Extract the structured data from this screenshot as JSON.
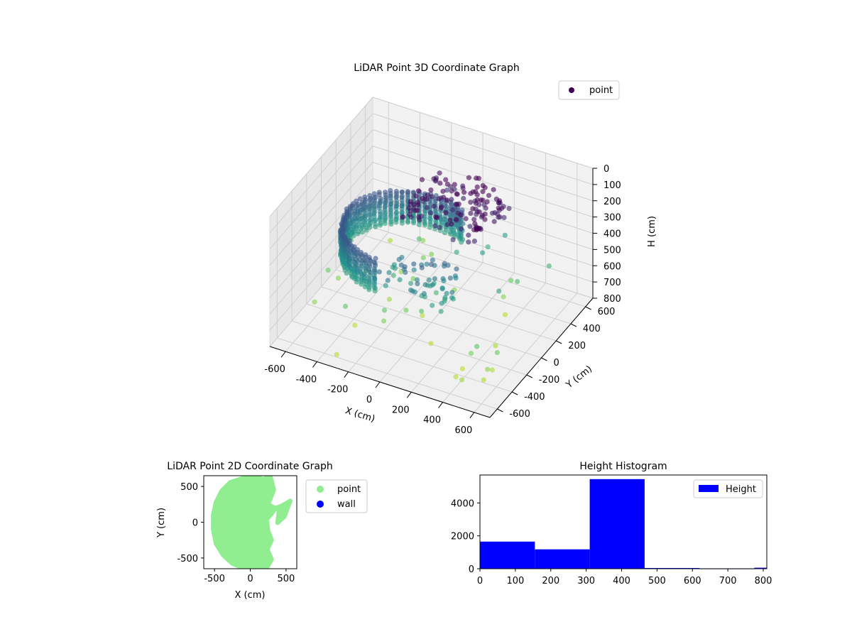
{
  "colors": {
    "point_3d_low": "#440154",
    "point_3d_high": "#b5de2b",
    "point_2d": "#90ee90",
    "wall": "#0000ff",
    "histogram_bar": "#0000ff",
    "pane": "#f2f2f2",
    "grid": "#d0d0d0"
  },
  "chart_data": [
    {
      "type": "scatter",
      "title": "LiDAR Point 3D Coordinate Graph",
      "xlabel": "X (cm)",
      "ylabel": "Y (cm)",
      "zlabel": "H (cm)",
      "xlim": [
        -700,
        700
      ],
      "ylim": [
        -700,
        700
      ],
      "zlim": [
        0,
        800
      ],
      "z_inverted": true,
      "x_ticks": [
        -600,
        -400,
        -200,
        0,
        200,
        400,
        600
      ],
      "y_ticks": [
        -600,
        -400,
        -200,
        0,
        200,
        400,
        600
      ],
      "z_ticks": [
        0,
        100,
        200,
        300,
        400,
        500,
        600,
        700,
        800
      ],
      "legend": {
        "position": "top-right",
        "entries": [
          "point"
        ]
      },
      "grid": true,
      "colormap": "viridis",
      "point_summary": {
        "wall_ring": {
          "shape": "partial cylinder",
          "center_x": -150,
          "center_y": 0,
          "radius": 380,
          "height_range": [
            270,
            470
          ]
        },
        "upper_cluster": {
          "x_range": [
            -150,
            350
          ],
          "y_range": [
            -100,
            400
          ],
          "height_range": [
            60,
            200
          ]
        },
        "sparse_outliers": {
          "height_range": [
            450,
            800
          ]
        }
      },
      "series": [
        {
          "name": "point"
        }
      ]
    },
    {
      "type": "scatter",
      "title": "LiDAR Point 2D Coordinate Graph",
      "xlabel": "X (cm)",
      "ylabel": "Y (cm)",
      "xlim": [
        -650,
        650
      ],
      "ylim": [
        -650,
        650
      ],
      "x_ticks": [
        -500,
        0,
        500
      ],
      "y_ticks": [
        -500,
        0,
        500
      ],
      "legend": {
        "position": "outside-right",
        "entries": [
          "point",
          "wall"
        ]
      },
      "series": [
        {
          "name": "point",
          "color": "#90ee90",
          "outline": [
            [
              -150,
              600
            ],
            [
              -280,
              560
            ],
            [
              -400,
              440
            ],
            [
              -480,
              280
            ],
            [
              -520,
              100
            ],
            [
              -520,
              -100
            ],
            [
              -480,
              -300
            ],
            [
              -380,
              -460
            ],
            [
              -250,
              -580
            ],
            [
              -100,
              -640
            ],
            [
              60,
              -640
            ],
            [
              230,
              -640
            ],
            [
              300,
              -520
            ],
            [
              240,
              -380
            ],
            [
              300,
              -250
            ],
            [
              250,
              -120
            ],
            [
              230,
              40
            ],
            [
              300,
              120
            ],
            [
              360,
              200
            ],
            [
              440,
              230
            ],
            [
              560,
              300
            ],
            [
              480,
              80
            ],
            [
              380,
              -10
            ],
            [
              400,
              170
            ],
            [
              250,
              250
            ],
            [
              330,
              450
            ],
            [
              280,
              650
            ],
            [
              180,
              600
            ],
            [
              60,
              650
            ],
            [
              -50,
              640
            ]
          ]
        },
        {
          "name": "wall",
          "color": "#0000ff",
          "values": []
        }
      ]
    },
    {
      "type": "bar",
      "subtype": "histogram",
      "title": "Height Histogram",
      "xlabel": "",
      "ylabel": "",
      "xlim": [
        0,
        810
      ],
      "ylim": [
        0,
        5700
      ],
      "x_ticks": [
        0,
        100,
        200,
        300,
        400,
        500,
        600,
        700,
        800
      ],
      "y_ticks": [
        0,
        2000,
        4000
      ],
      "legend": {
        "position": "top-right",
        "entries": [
          "Height"
        ]
      },
      "bins": [
        {
          "start": 0,
          "end": 155,
          "count": 1650
        },
        {
          "start": 155,
          "end": 310,
          "count": 1180
        },
        {
          "start": 310,
          "end": 465,
          "count": 5450
        },
        {
          "start": 465,
          "end": 620,
          "count": 45
        },
        {
          "start": 620,
          "end": 775,
          "count": 8
        },
        {
          "start": 775,
          "end": 810,
          "count": 60
        }
      ],
      "series": [
        {
          "name": "Height",
          "color": "#0000ff"
        }
      ]
    }
  ]
}
